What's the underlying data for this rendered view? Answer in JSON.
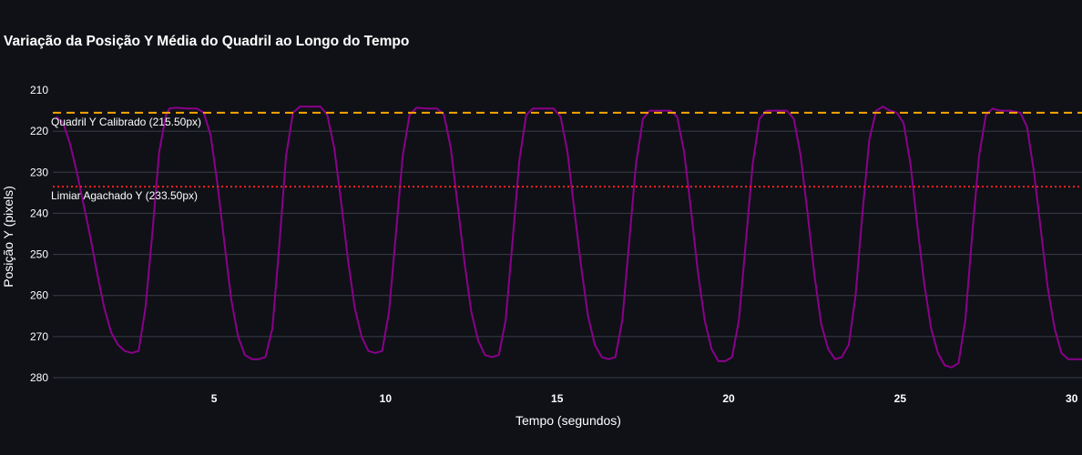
{
  "chart_data": {
    "type": "line",
    "title": "Variação da Posição Y Média do Quadril ao Longo do Tempo",
    "xlabel": "Tempo (segundos)",
    "ylabel": "Posição Y (pixels)",
    "xlim": [
      0.3,
      30.3
    ],
    "ylim": [
      210,
      280
    ],
    "y_inverted": true,
    "x_ticks": [
      5,
      10,
      15,
      20,
      25,
      30
    ],
    "y_ticks": [
      210,
      220,
      230,
      240,
      250,
      260,
      270,
      280
    ],
    "grid": "horizontal",
    "background": "#0f1117",
    "series": [
      {
        "color": "#8b008b",
        "points": [
          [
            0.4,
            216.5
          ],
          [
            0.6,
            218
          ],
          [
            0.8,
            223
          ],
          [
            1.0,
            230
          ],
          [
            1.2,
            238
          ],
          [
            1.4,
            246
          ],
          [
            1.6,
            255
          ],
          [
            1.8,
            263
          ],
          [
            2.0,
            269
          ],
          [
            2.2,
            272
          ],
          [
            2.4,
            273.5
          ],
          [
            2.6,
            274
          ],
          [
            2.8,
            273.5
          ],
          [
            3.0,
            263
          ],
          [
            3.2,
            245
          ],
          [
            3.4,
            225
          ],
          [
            3.6,
            216
          ],
          [
            3.7,
            214.5
          ],
          [
            3.9,
            214.3
          ],
          [
            4.2,
            214.5
          ],
          [
            4.5,
            214.5
          ],
          [
            4.7,
            215.5
          ],
          [
            4.9,
            221
          ],
          [
            5.1,
            233
          ],
          [
            5.3,
            247
          ],
          [
            5.5,
            261
          ],
          [
            5.7,
            270
          ],
          [
            5.9,
            274.5
          ],
          [
            6.1,
            275.5
          ],
          [
            6.3,
            275.5
          ],
          [
            6.5,
            275
          ],
          [
            6.7,
            268
          ],
          [
            6.9,
            248
          ],
          [
            7.1,
            226
          ],
          [
            7.3,
            215.5
          ],
          [
            7.5,
            214
          ],
          [
            7.8,
            214
          ],
          [
            8.1,
            214
          ],
          [
            8.3,
            216
          ],
          [
            8.5,
            224
          ],
          [
            8.7,
            237
          ],
          [
            8.9,
            251
          ],
          [
            9.1,
            263
          ],
          [
            9.3,
            270
          ],
          [
            9.5,
            273.5
          ],
          [
            9.7,
            274
          ],
          [
            9.9,
            273.5
          ],
          [
            10.1,
            264
          ],
          [
            10.3,
            245
          ],
          [
            10.5,
            226
          ],
          [
            10.7,
            216
          ],
          [
            10.9,
            214.3
          ],
          [
            11.2,
            214.5
          ],
          [
            11.5,
            214.5
          ],
          [
            11.7,
            216
          ],
          [
            11.9,
            224
          ],
          [
            12.1,
            238
          ],
          [
            12.3,
            252
          ],
          [
            12.5,
            264
          ],
          [
            12.7,
            271
          ],
          [
            12.9,
            274.5
          ],
          [
            13.1,
            275
          ],
          [
            13.3,
            274.5
          ],
          [
            13.5,
            266
          ],
          [
            13.7,
            247
          ],
          [
            13.9,
            227
          ],
          [
            14.1,
            216
          ],
          [
            14.3,
            214.5
          ],
          [
            14.6,
            214.5
          ],
          [
            14.9,
            214.5
          ],
          [
            15.1,
            216.5
          ],
          [
            15.3,
            225
          ],
          [
            15.5,
            239
          ],
          [
            15.7,
            253
          ],
          [
            15.9,
            265
          ],
          [
            16.1,
            272
          ],
          [
            16.3,
            275
          ],
          [
            16.5,
            275.5
          ],
          [
            16.7,
            275
          ],
          [
            16.9,
            266
          ],
          [
            17.1,
            247
          ],
          [
            17.3,
            228
          ],
          [
            17.5,
            217
          ],
          [
            17.7,
            215
          ],
          [
            18.0,
            215
          ],
          [
            18.3,
            215
          ],
          [
            18.5,
            216.5
          ],
          [
            18.7,
            225
          ],
          [
            18.9,
            239
          ],
          [
            19.1,
            254
          ],
          [
            19.3,
            266
          ],
          [
            19.5,
            273
          ],
          [
            19.7,
            276
          ],
          [
            19.9,
            276
          ],
          [
            20.1,
            275
          ],
          [
            20.3,
            266
          ],
          [
            20.5,
            247
          ],
          [
            20.7,
            228
          ],
          [
            20.9,
            217
          ],
          [
            21.1,
            215
          ],
          [
            21.4,
            215
          ],
          [
            21.7,
            215
          ],
          [
            21.9,
            217
          ],
          [
            22.1,
            226
          ],
          [
            22.3,
            240
          ],
          [
            22.5,
            255
          ],
          [
            22.7,
            267
          ],
          [
            22.9,
            273
          ],
          [
            23.1,
            275.5
          ],
          [
            23.3,
            275
          ],
          [
            23.5,
            272
          ],
          [
            23.7,
            260
          ],
          [
            23.9,
            240
          ],
          [
            24.1,
            222
          ],
          [
            24.3,
            215
          ],
          [
            24.5,
            214
          ],
          [
            24.7,
            215
          ],
          [
            24.9,
            215.5
          ],
          [
            25.1,
            218
          ],
          [
            25.3,
            228
          ],
          [
            25.5,
            243
          ],
          [
            25.7,
            257
          ],
          [
            25.9,
            268
          ],
          [
            26.1,
            274
          ],
          [
            26.3,
            277
          ],
          [
            26.5,
            277.5
          ],
          [
            26.7,
            276.5
          ],
          [
            26.9,
            266
          ],
          [
            27.1,
            245
          ],
          [
            27.3,
            226
          ],
          [
            27.5,
            216
          ],
          [
            27.7,
            214.5
          ],
          [
            27.9,
            215
          ],
          [
            28.2,
            215
          ],
          [
            28.5,
            215.5
          ],
          [
            28.7,
            219
          ],
          [
            28.9,
            230
          ],
          [
            29.1,
            244
          ],
          [
            29.3,
            258
          ],
          [
            29.5,
            268
          ],
          [
            29.7,
            274
          ],
          [
            29.9,
            275.5
          ],
          [
            30.1,
            275.5
          ],
          [
            30.3,
            275.5
          ]
        ]
      }
    ],
    "reference_lines": [
      {
        "label": "Quadril Y Calibrado (215.50px)",
        "y": 215.5,
        "color": "#ffa500",
        "style": "dashed"
      },
      {
        "label": "Limiar Agachado Y (233.50px)",
        "y": 233.5,
        "color": "#ff2020",
        "style": "dotted"
      }
    ]
  }
}
